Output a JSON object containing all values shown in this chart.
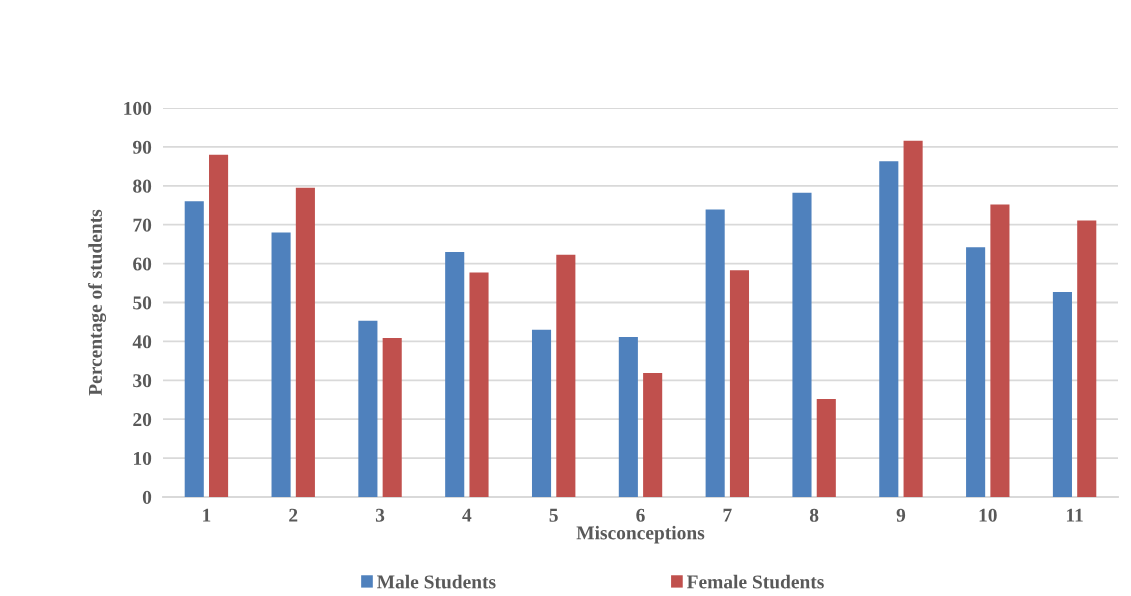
{
  "chart_data": {
    "type": "bar",
    "xlabel": "Misconceptions",
    "ylabel": "Percentage of students",
    "categories": [
      "1",
      "2",
      "3",
      "4",
      "5",
      "6",
      "7",
      "8",
      "9",
      "10",
      "11"
    ],
    "series": [
      {
        "name": "Male Students",
        "color": "#4f81bd",
        "values": [
          76,
          68,
          45.3,
          63,
          43,
          41.1,
          73.9,
          78.2,
          86.3,
          64.2,
          52.7
        ]
      },
      {
        "name": "Female Students",
        "color": "#c0504d",
        "values": [
          88,
          79.5,
          40.9,
          57.7,
          62.3,
          31.9,
          58.3,
          25.2,
          91.6,
          75.2,
          71.1
        ]
      }
    ],
    "ylim": [
      0,
      100
    ],
    "yticks": [
      0,
      10,
      20,
      30,
      40,
      50,
      60,
      70,
      80,
      90,
      100
    ],
    "grid": "y",
    "legend": "bottom"
  }
}
